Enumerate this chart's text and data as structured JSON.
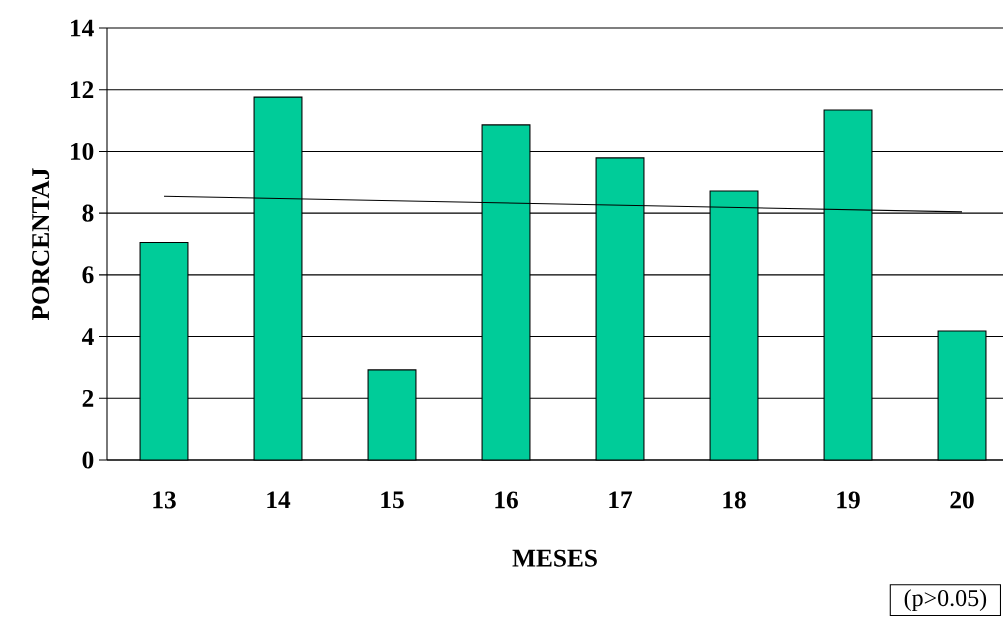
{
  "chart_data": {
    "type": "bar",
    "xlabel": "MESES",
    "ylabel": "PORCENTAJ",
    "categories": [
      "13",
      "14",
      "15",
      "16",
      "17",
      "18",
      "19",
      "20"
    ],
    "series": [
      {
        "color": "#00cc99",
        "values": [
          7.05,
          11.76,
          2.92,
          10.86,
          9.79,
          8.72,
          11.34,
          4.18
        ]
      },
      {
        "type": "line",
        "color": "#000000",
        "x": [
          "13",
          "20"
        ],
        "values": [
          8.55,
          8.04
        ]
      }
    ],
    "ylim": [
      0,
      14
    ],
    "yticks": [
      0,
      2,
      4,
      6,
      8,
      10,
      12,
      14
    ],
    "grid": "y",
    "annotations": [
      "(p>0.05)"
    ]
  }
}
